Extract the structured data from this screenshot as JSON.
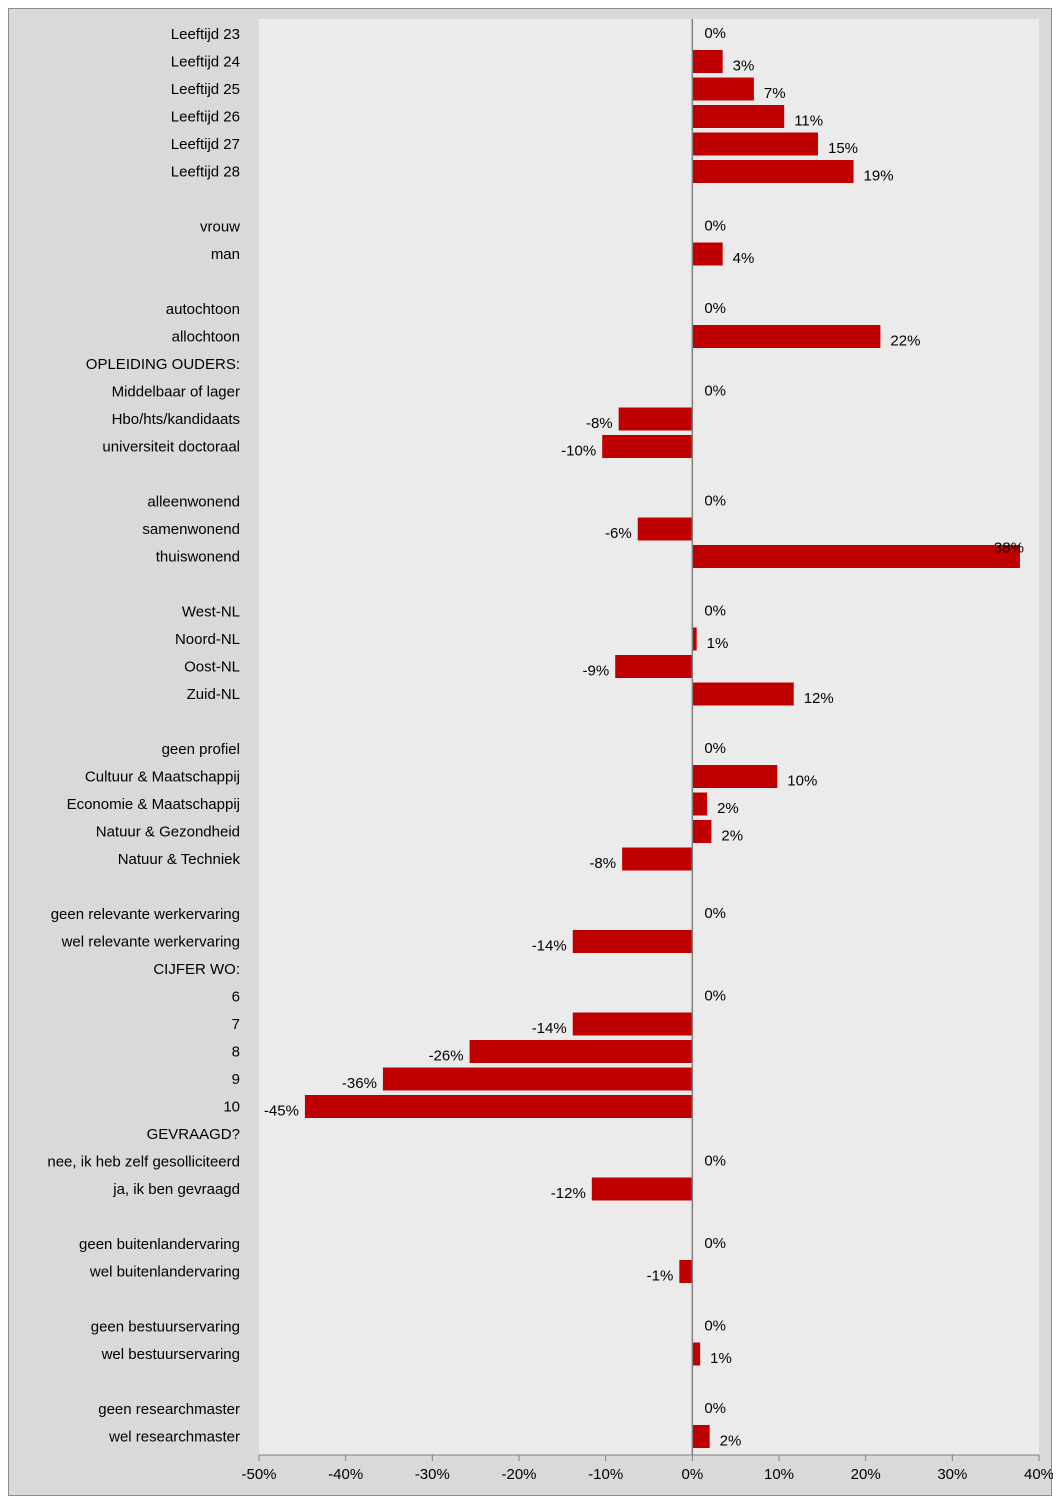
{
  "chart_data": {
    "type": "bar",
    "orientation": "horizontal",
    "title": "",
    "xlabel": "",
    "ylabel": "",
    "xlim": [
      -0.5,
      0.4
    ],
    "x_ticks": [
      -0.5,
      -0.4,
      -0.3,
      -0.2,
      -0.1,
      0,
      0.1,
      0.2,
      0.3,
      0.4
    ],
    "x_tick_labels": [
      "-50%",
      "-40%",
      "-30%",
      "-20%",
      "-10%",
      "0%",
      "10%",
      "20%",
      "30%",
      "40%"
    ],
    "grid": false,
    "legend": "none",
    "colors": {
      "bar": "#c00000",
      "plot_background": "#ebebeb",
      "chart_background": "#d9d9d9",
      "zero_line": "#808080"
    },
    "series": [
      {
        "values": [
          0,
          0.035,
          0.071,
          0.106,
          0.145,
          0.186,
          null,
          0,
          0.035,
          null,
          0,
          0.217,
          null,
          0,
          -0.085,
          -0.104,
          null,
          0,
          -0.063,
          0.378,
          null,
          0,
          0.005,
          -0.089,
          0.117,
          null,
          0,
          0.098,
          0.017,
          0.022,
          -0.081,
          null,
          0,
          -0.138,
          null,
          0,
          -0.138,
          -0.257,
          -0.357,
          -0.447,
          null,
          0,
          -0.116,
          null,
          0,
          -0.015,
          null,
          0,
          0.009,
          null,
          0,
          0.02
        ]
      }
    ],
    "categories": [
      "Leeftijd 23",
      "Leeftijd 24",
      "Leeftijd 25",
      "Leeftijd 26",
      "Leeftijd 27",
      "Leeftijd 28",
      "",
      "vrouw",
      "man",
      "",
      "autochtoon",
      "allochtoon",
      "OPLEIDING OUDERS:",
      "Middelbaar of lager",
      "Hbo/hts/kandidaats",
      "universiteit doctoraal",
      "",
      "alleenwonend",
      "samenwonend",
      "thuiswonend",
      "",
      "West-NL",
      "Noord-NL",
      "Oost-NL",
      "Zuid-NL",
      "",
      "geen profiel",
      "Cultuur & Maatschappij",
      "Economie & Maatschappij",
      "Natuur & Gezondheid",
      "Natuur & Techniek",
      "",
      "geen relevante werkervaring",
      "wel relevante werkervaring",
      "CIJFER WO:",
      "6",
      "7",
      "8",
      "9",
      "10",
      "GEVRAAGD?",
      "nee, ik heb zelf gesolliciteerd",
      "ja, ik ben gevraagd",
      "",
      "geen buitenlandervaring",
      "wel buitenlandervaring",
      "",
      "geen bestuurservaring",
      "wel bestuurservaring",
      "",
      "geen researchmaster",
      "wel researchmaster"
    ],
    "data_labels": [
      "0%",
      "3%",
      "7%",
      "11%",
      "15%",
      "19%",
      "",
      "0%",
      "4%",
      "",
      "0%",
      "22%",
      "",
      "0%",
      "-8%",
      "-10%",
      "",
      "0%",
      "-6%",
      "38%",
      "",
      "0%",
      "1%",
      "-9%",
      "12%",
      "",
      "0%",
      "10%",
      "2%",
      "2%",
      "-8%",
      "",
      "0%",
      "-14%",
      "",
      "0%",
      "-14%",
      "-26%",
      "-36%",
      "-45%",
      "",
      "0%",
      "-12%",
      "",
      "0%",
      "-1%",
      "",
      "0%",
      "1%",
      "",
      "0%",
      "2%"
    ]
  }
}
